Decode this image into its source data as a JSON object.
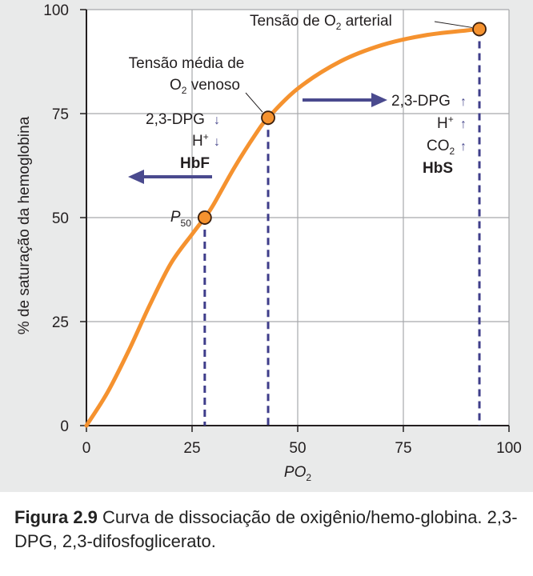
{
  "chart_data": {
    "type": "line",
    "xlabel": "PO",
    "xlabel_sub": "2",
    "ylabel": "% de saturação da hemoglobina",
    "xlim": [
      0,
      100
    ],
    "ylim": [
      0,
      100
    ],
    "x_ticks": [
      0,
      25,
      50,
      75,
      100
    ],
    "y_ticks": [
      0,
      25,
      50,
      75,
      100
    ],
    "grid": true,
    "series": [
      {
        "name": "Curva de dissociação de oxigênio/hemoglobina",
        "color": "#f5922f",
        "x": [
          0,
          5,
          10,
          15,
          20,
          25,
          28,
          30,
          35,
          40,
          43,
          50,
          60,
          70,
          80,
          90,
          93
        ],
        "y": [
          0,
          8,
          18,
          29,
          39,
          46,
          50,
          53,
          62,
          70,
          74,
          81,
          87.5,
          91.5,
          93.8,
          95,
          95.3
        ]
      }
    ],
    "points": [
      {
        "name": "P50",
        "x": 28,
        "y": 50
      },
      {
        "name": "venous",
        "x": 43,
        "y": 74
      },
      {
        "name": "arterial",
        "x": 93,
        "y": 95.3
      }
    ],
    "annotations": {
      "p50_main": "P",
      "p50_sub": "50",
      "arterial_a": "Tensão de O",
      "arterial_sub": "2",
      "arterial_b": " arterial",
      "venous_line1": "Tensão média de",
      "venous_line2_a": "O",
      "venous_line2_sub": "2",
      "venous_line2_b": " venoso",
      "left_dpg": "2,3-DPG",
      "left_h": "H",
      "left_h_sup": "+",
      "left_hbf": "HbF",
      "right_dpg": "2,3-DPG",
      "right_h": "H",
      "right_h_sup": "+",
      "right_co": "CO",
      "right_co_sub": "2",
      "right_hbs": "HbS",
      "arrow_down": "↓",
      "arrow_up": "↑"
    }
  },
  "caption": {
    "label": "Figura 2.9",
    "text": " Curva de dissociação de oxigênio/hemo-globina. 2,3-DPG, 2,3-difosfoglicerato."
  },
  "colors": {
    "curve": "#f5922f",
    "marker_stroke": "#3b1f0c",
    "dashed": "#3e3d8a",
    "arrow": "#4a4a8e"
  }
}
